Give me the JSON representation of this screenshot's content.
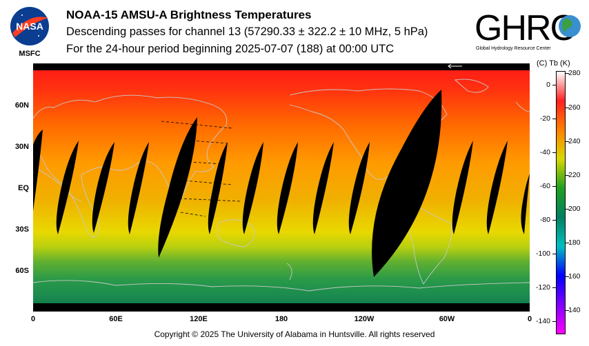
{
  "header": {
    "title": "NOAA-15 AMSU-A Brightness Temperatures",
    "subtitle": "Descending passes for channel 13 (57290.33 ± 322.2 ± 10 MHz, 5 hPa)",
    "period": "For the 24-hour period beginning 2025-07-07 (188) at 00:00 UTC"
  },
  "logos": {
    "nasa_text": "NASA",
    "msfc_text": "MSFC",
    "ghrc_text": "GHRC",
    "ghrc_sub": "Global Hydrology Resource Center"
  },
  "map": {
    "longitude_labels": [
      "0",
      "60E",
      "120E",
      "180",
      "120W",
      "60W",
      "0"
    ],
    "latitude_labels": [
      "60N",
      "30N",
      "EQ",
      "30S",
      "60S"
    ],
    "colors": {
      "no_data": "#000000",
      "coast": "#c0c0c0"
    }
  },
  "colorbar": {
    "units_label": "(C)  Tb  (K)",
    "celsius_ticks": [
      "0",
      "-20",
      "-40",
      "-60",
      "-80",
      "-100",
      "-120",
      "-140"
    ],
    "kelvin_ticks": [
      "280",
      "260",
      "240",
      "220",
      "200",
      "180",
      "160",
      "140"
    ],
    "stops": [
      "#ffffff",
      "#ff2020",
      "#ff8000",
      "#d8d800",
      "#20a020",
      "#008060",
      "#00c0c0",
      "#0000ff",
      "#8000ff",
      "#ff00ff"
    ]
  },
  "footer": {
    "copyright": "Copyright © 2025 The University of Alabama in Huntsville.  All rights reserved"
  }
}
